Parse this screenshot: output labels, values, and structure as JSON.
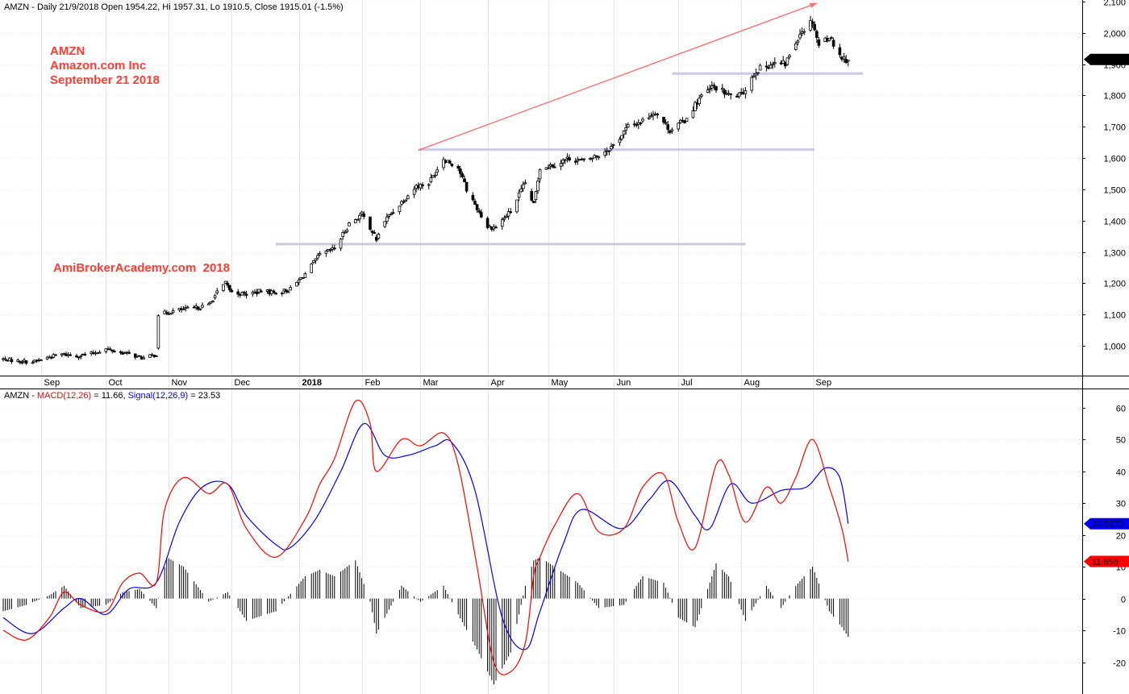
{
  "chart_data": [
    {
      "type": "candlestick",
      "header": "AMZN - Daily 21/9/2018 Open 1954.22, Hi 1957.31, Lo 1910.5, Close 1915.01 (-1.5%)",
      "annotations": [
        "AMZN",
        "Amazon.com Inc",
        "September 21 2018",
        "AmiBrokerAcademy.com  2018"
      ],
      "ylim": [
        905,
        2105
      ],
      "yticks": [
        1000,
        1100,
        1200,
        1300,
        1400,
        1500,
        1600,
        1700,
        1800,
        1900,
        2000,
        2100
      ],
      "ytick_labels": [
        "1,000",
        "1,100",
        "1,200",
        "1,300",
        "1,400",
        "1,500",
        "1,600",
        "1,700",
        "1,800",
        "1,900",
        "2,000",
        "2,100"
      ],
      "months": [
        {
          "label": "Sep",
          "date": "2017-09-01"
        },
        {
          "label": "Oct",
          "date": "2017-10-02"
        },
        {
          "label": "Nov",
          "date": "2017-11-01"
        },
        {
          "label": "Dec",
          "date": "2017-12-01"
        },
        {
          "label": "2018",
          "date": "2018-01-02",
          "bold": true
        },
        {
          "label": "Feb",
          "date": "2018-02-01"
        },
        {
          "label": "Mar",
          "date": "2018-03-01"
        },
        {
          "label": "Apr",
          "date": "2018-04-02"
        },
        {
          "label": "May",
          "date": "2018-05-01"
        },
        {
          "label": "Jun",
          "date": "2018-06-01"
        },
        {
          "label": "Jul",
          "date": "2018-07-02"
        },
        {
          "label": "Aug",
          "date": "2018-08-01"
        },
        {
          "label": "Sep",
          "date": "2018-09-04"
        }
      ],
      "price_path": [
        [
          "2017-08-14",
          958
        ],
        [
          "2017-08-21",
          952
        ],
        [
          "2017-08-28",
          948
        ],
        [
          "2017-09-05",
          965
        ],
        [
          "2017-09-11",
          973
        ],
        [
          "2017-09-18",
          968
        ],
        [
          "2017-09-25",
          975
        ],
        [
          "2017-10-02",
          990
        ],
        [
          "2017-10-09",
          980
        ],
        [
          "2017-10-16",
          968
        ],
        [
          "2017-10-20",
          960
        ],
        [
          "2017-10-26",
          973
        ],
        [
          "2017-10-27",
          1100
        ],
        [
          "2017-11-06",
          1115
        ],
        [
          "2017-11-13",
          1120
        ],
        [
          "2017-11-20",
          1130
        ],
        [
          "2017-11-24",
          1170
        ],
        [
          "2017-11-28",
          1200
        ],
        [
          "2017-12-01",
          1170
        ],
        [
          "2017-12-08",
          1165
        ],
        [
          "2017-12-15",
          1175
        ],
        [
          "2017-12-22",
          1170
        ],
        [
          "2017-12-29",
          1180
        ],
        [
          "2018-01-05",
          1230
        ],
        [
          "2018-01-12",
          1290
        ],
        [
          "2018-01-19",
          1310
        ],
        [
          "2018-01-26",
          1390
        ],
        [
          "2018-02-01",
          1420
        ],
        [
          "2018-02-05",
          1380
        ],
        [
          "2018-02-08",
          1340
        ],
        [
          "2018-02-12",
          1400
        ],
        [
          "2018-02-20",
          1460
        ],
        [
          "2018-02-27",
          1510
        ],
        [
          "2018-03-05",
          1520
        ],
        [
          "2018-03-12",
          1600
        ],
        [
          "2018-03-19",
          1570
        ],
        [
          "2018-03-23",
          1500
        ],
        [
          "2018-03-28",
          1440
        ],
        [
          "2018-04-02",
          1380
        ],
        [
          "2018-04-06",
          1380
        ],
        [
          "2018-04-13",
          1430
        ],
        [
          "2018-04-20",
          1520
        ],
        [
          "2018-04-24",
          1450
        ],
        [
          "2018-04-27",
          1570
        ],
        [
          "2018-05-04",
          1580
        ],
        [
          "2018-05-11",
          1600
        ],
        [
          "2018-05-18",
          1590
        ],
        [
          "2018-05-25",
          1610
        ],
        [
          "2018-06-01",
          1640
        ],
        [
          "2018-06-08",
          1700
        ],
        [
          "2018-06-15",
          1720
        ],
        [
          "2018-06-21",
          1750
        ],
        [
          "2018-06-28",
          1690
        ],
        [
          "2018-07-05",
          1720
        ],
        [
          "2018-07-12",
          1790
        ],
        [
          "2018-07-19",
          1830
        ],
        [
          "2018-07-26",
          1800
        ],
        [
          "2018-08-01",
          1800
        ],
        [
          "2018-08-08",
          1880
        ],
        [
          "2018-08-15",
          1900
        ],
        [
          "2018-08-22",
          1900
        ],
        [
          "2018-08-29",
          2000
        ],
        [
          "2018-09-04",
          2040
        ],
        [
          "2018-09-07",
          1960
        ],
        [
          "2018-09-12",
          1990
        ],
        [
          "2018-09-18",
          1920
        ],
        [
          "2018-09-21",
          1915
        ]
      ],
      "last_close_label": "1,915.01",
      "trend_arrow": {
        "from": [
          "2018-02-28",
          1625
        ],
        "to": [
          "2018-09-06",
          2095
        ],
        "color": "#ff6a6a"
      },
      "horizontal_lines": [
        {
          "from": "2017-12-22",
          "to": "2018-08-03",
          "y": 1325,
          "color": "#c8c8e8"
        },
        {
          "from": "2018-02-28",
          "to": "2018-09-05",
          "y": 1627,
          "color": "#c8c8e8"
        },
        {
          "from": "2018-06-29",
          "to": "2018-09-28",
          "y": 1870,
          "color": "#c8c8e8"
        }
      ]
    },
    {
      "type": "line",
      "header": {
        "prefix": "AMZN - ",
        "macd_label": "MACD(12,26)",
        "macd_value": " = 11.66, ",
        "signal_label": "Signal(12,26,9)",
        "signal_value": " = 23.53"
      },
      "ylim": [
        -30,
        65
      ],
      "yticks": [
        -20,
        -10,
        0,
        10,
        20,
        30,
        40,
        50,
        60
      ],
      "ytick_labels": [
        "-20",
        "-10",
        "0",
        "10",
        "20",
        "30",
        "40",
        "50",
        "60"
      ],
      "series": [
        {
          "name": "MACD(12,26)",
          "color": "#ff0000",
          "points": [
            [
              "2017-08-14",
              -10
            ],
            [
              "2017-08-25",
              -13
            ],
            [
              "2017-09-05",
              -6
            ],
            [
              "2017-09-12",
              2
            ],
            [
              "2017-09-20",
              -2
            ],
            [
              "2017-10-02",
              -4
            ],
            [
              "2017-10-10",
              5
            ],
            [
              "2017-10-18",
              8
            ],
            [
              "2017-10-26",
              5
            ],
            [
              "2017-10-30",
              28
            ],
            [
              "2017-11-08",
              38
            ],
            [
              "2017-11-20",
              33
            ],
            [
              "2017-11-29",
              36
            ],
            [
              "2017-12-08",
              22
            ],
            [
              "2017-12-22",
              13
            ],
            [
              "2018-01-05",
              25
            ],
            [
              "2018-01-12",
              36
            ],
            [
              "2018-01-19",
              44
            ],
            [
              "2018-01-29",
              62
            ],
            [
              "2018-02-05",
              55
            ],
            [
              "2018-02-08",
              40
            ],
            [
              "2018-02-20",
              50
            ],
            [
              "2018-03-01",
              48
            ],
            [
              "2018-03-12",
              52
            ],
            [
              "2018-03-19",
              42
            ],
            [
              "2018-03-28",
              10
            ],
            [
              "2018-04-05",
              -20
            ],
            [
              "2018-04-13",
              -23
            ],
            [
              "2018-04-20",
              -14
            ],
            [
              "2018-04-24",
              7
            ],
            [
              "2018-04-27",
              13
            ],
            [
              "2018-05-04",
              23
            ],
            [
              "2018-05-15",
              33
            ],
            [
              "2018-05-25",
              21
            ],
            [
              "2018-06-06",
              22
            ],
            [
              "2018-06-15",
              35
            ],
            [
              "2018-06-25",
              39
            ],
            [
              "2018-07-02",
              24
            ],
            [
              "2018-07-10",
              16
            ],
            [
              "2018-07-20",
              42
            ],
            [
              "2018-07-26",
              39
            ],
            [
              "2018-08-03",
              24
            ],
            [
              "2018-08-13",
              35
            ],
            [
              "2018-08-20",
              30
            ],
            [
              "2018-08-27",
              38
            ],
            [
              "2018-09-04",
              50
            ],
            [
              "2018-09-12",
              35
            ],
            [
              "2018-09-18",
              22
            ],
            [
              "2018-09-21",
              11.66
            ]
          ]
        },
        {
          "name": "Signal(12,26,9)",
          "color": "#0000ff",
          "points": [
            [
              "2017-08-14",
              -6
            ],
            [
              "2017-08-28",
              -11
            ],
            [
              "2017-09-12",
              -3
            ],
            [
              "2017-09-20",
              0
            ],
            [
              "2017-10-02",
              -5
            ],
            [
              "2017-10-13",
              3
            ],
            [
              "2017-10-26",
              5
            ],
            [
              "2017-11-06",
              24
            ],
            [
              "2017-11-17",
              35
            ],
            [
              "2017-11-29",
              36
            ],
            [
              "2017-12-08",
              26
            ],
            [
              "2017-12-22",
              17
            ],
            [
              "2017-12-29",
              16
            ],
            [
              "2018-01-10",
              25
            ],
            [
              "2018-01-22",
              40
            ],
            [
              "2018-02-02",
              55
            ],
            [
              "2018-02-12",
              45
            ],
            [
              "2018-02-23",
              45
            ],
            [
              "2018-03-08",
              48
            ],
            [
              "2018-03-16",
              49
            ],
            [
              "2018-03-27",
              34
            ],
            [
              "2018-04-09",
              -6
            ],
            [
              "2018-04-20",
              -16
            ],
            [
              "2018-04-27",
              -4
            ],
            [
              "2018-05-08",
              17
            ],
            [
              "2018-05-17",
              28
            ],
            [
              "2018-06-05",
              22
            ],
            [
              "2018-06-18",
              31
            ],
            [
              "2018-06-28",
              37
            ],
            [
              "2018-07-10",
              26
            ],
            [
              "2018-07-17",
              22
            ],
            [
              "2018-07-27",
              36
            ],
            [
              "2018-08-06",
              30
            ],
            [
              "2018-08-20",
              34
            ],
            [
              "2018-09-01",
              35
            ],
            [
              "2018-09-10",
              41
            ],
            [
              "2018-09-17",
              38
            ],
            [
              "2018-09-21",
              23.53
            ]
          ]
        },
        {
          "name": "Histogram",
          "color": "#000000",
          "points": [
            [
              "2017-08-14",
              -4
            ],
            [
              "2017-08-25",
              -2
            ],
            [
              "2017-09-05",
              1
            ],
            [
              "2017-09-12",
              4
            ],
            [
              "2017-09-20",
              -3
            ],
            [
              "2017-10-02",
              -2
            ],
            [
              "2017-10-10",
              2
            ],
            [
              "2017-10-18",
              3
            ],
            [
              "2017-10-26",
              -3
            ],
            [
              "2017-10-31",
              13
            ],
            [
              "2017-11-08",
              10
            ],
            [
              "2017-11-20",
              -1
            ],
            [
              "2017-11-29",
              2
            ],
            [
              "2017-12-08",
              -7
            ],
            [
              "2017-12-22",
              -4
            ],
            [
              "2018-01-05",
              7
            ],
            [
              "2018-01-12",
              9
            ],
            [
              "2018-01-19",
              7
            ],
            [
              "2018-01-29",
              12
            ],
            [
              "2018-02-05",
              -1
            ],
            [
              "2018-02-08",
              -11
            ],
            [
              "2018-02-20",
              4
            ],
            [
              "2018-03-01",
              -1
            ],
            [
              "2018-03-12",
              4
            ],
            [
              "2018-03-19",
              -5
            ],
            [
              "2018-03-28",
              -16
            ],
            [
              "2018-04-05",
              -27
            ],
            [
              "2018-04-13",
              -17
            ],
            [
              "2018-04-20",
              4
            ],
            [
              "2018-04-24",
              12
            ],
            [
              "2018-04-27",
              13
            ],
            [
              "2018-05-04",
              10
            ],
            [
              "2018-05-15",
              5
            ],
            [
              "2018-05-25",
              -3
            ],
            [
              "2018-06-06",
              -2
            ],
            [
              "2018-06-15",
              7
            ],
            [
              "2018-06-25",
              5
            ],
            [
              "2018-07-02",
              -6
            ],
            [
              "2018-07-10",
              -9
            ],
            [
              "2018-07-20",
              11
            ],
            [
              "2018-07-26",
              7
            ],
            [
              "2018-08-03",
              -7
            ],
            [
              "2018-08-13",
              4
            ],
            [
              "2018-08-20",
              -3
            ],
            [
              "2018-08-27",
              4
            ],
            [
              "2018-09-04",
              10
            ],
            [
              "2018-09-12",
              -4
            ],
            [
              "2018-09-18",
              -9
            ],
            [
              "2018-09-21",
              -12
            ]
          ]
        }
      ],
      "value_labels": {
        "signal": "23.5273",
        "macd": "11.655"
      }
    }
  ]
}
